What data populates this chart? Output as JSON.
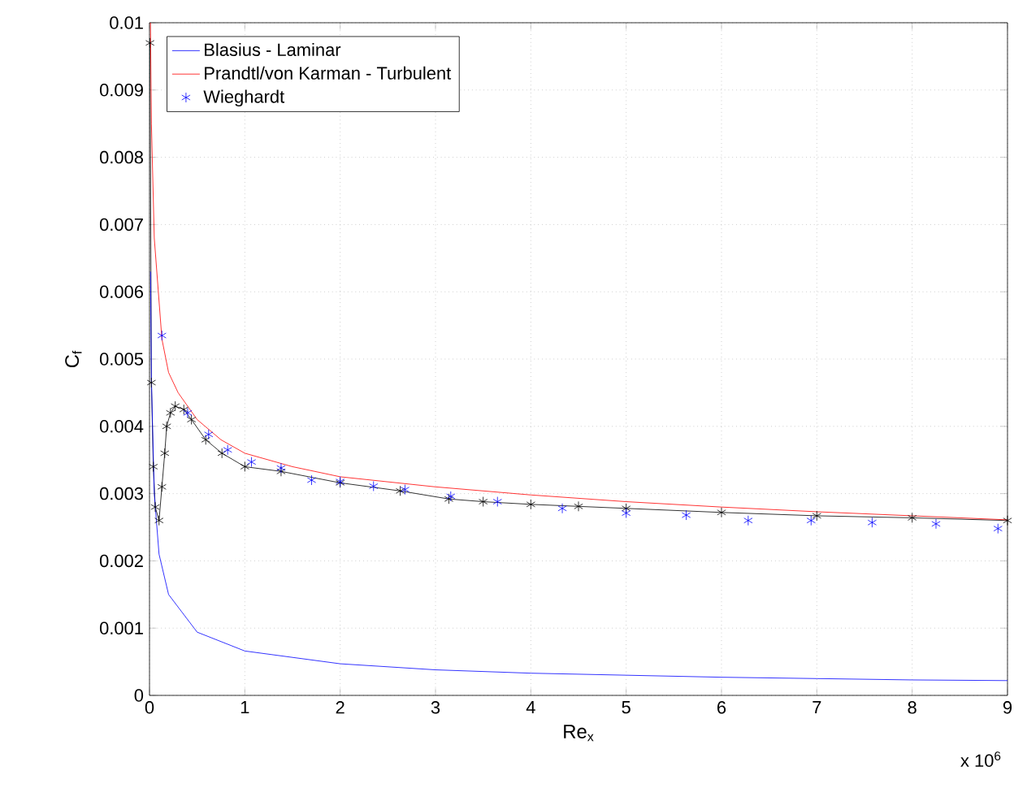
{
  "chart_data": {
    "type": "line",
    "xlabel": "Re$_{x}$",
    "ylabel": "C$_{f}$",
    "annotations": [
      "x 10$^{6}$"
    ],
    "xlim": [
      0,
      9
    ],
    "xticks": [
      0,
      1,
      2,
      3,
      4,
      5,
      6,
      7,
      8,
      9
    ],
    "ylim": [
      0,
      0.01
    ],
    "yticks": [
      0,
      0.001,
      0.002,
      0.003,
      0.004,
      0.005,
      0.006,
      0.007,
      0.008,
      0.009,
      0.01
    ],
    "grid": true,
    "legend": "top left",
    "series": [
      {
        "color": "#000000",
        "marker": "cross",
        "x": [
          0.005,
          0.02,
          0.04,
          0.06,
          0.1,
          0.13,
          0.16,
          0.18,
          0.22,
          0.27,
          0.36,
          0.44,
          0.59,
          0.76,
          1.0,
          1.38,
          2.0,
          2.63,
          3.14,
          3.5,
          4.0,
          4.5,
          5.0,
          6.0,
          7.0,
          8.0,
          9.0
        ],
        "values": [
          0.0097,
          0.00465,
          0.0034,
          0.0028,
          0.0026,
          0.0031,
          0.0036,
          0.004,
          0.0042,
          0.0043,
          0.00425,
          0.0041,
          0.0038,
          0.0036,
          0.0034,
          0.00333,
          0.00316,
          0.00304,
          0.00292,
          0.00288,
          0.00284,
          0.00281,
          0.00278,
          0.00272,
          0.00267,
          0.00264,
          0.0026
        ]
      },
      {
        "name": "Blasius - Laminar",
        "color": "#0000ff",
        "marker": "none",
        "x": [
          0.011,
          0.02,
          0.05,
          0.1,
          0.2,
          0.5,
          1,
          2,
          3,
          4,
          5,
          6,
          7,
          8,
          9
        ],
        "values": [
          0.0063,
          0.0047,
          0.003,
          0.0021,
          0.0015,
          0.00094,
          0.00066,
          0.00047,
          0.00038,
          0.00033,
          0.0003,
          0.00027,
          0.00025,
          0.00023,
          0.00022
        ]
      },
      {
        "name": "Prandtl/von Karman - Turbulent",
        "color": "#ff0000",
        "marker": "none",
        "x": [
          0.01,
          0.02,
          0.05,
          0.13,
          0.2,
          0.3,
          0.5,
          0.75,
          1,
          1.5,
          2,
          3,
          4,
          5,
          6,
          7,
          8,
          9
        ],
        "values": [
          0.01,
          0.0085,
          0.0068,
          0.0053,
          0.0048,
          0.0045,
          0.0041,
          0.0038,
          0.0036,
          0.0034,
          0.00325,
          0.0031,
          0.00298,
          0.00288,
          0.0028,
          0.00273,
          0.00267,
          0.00261
        ]
      },
      {
        "name": "Wieghardt",
        "type": "scatter",
        "color": "#0000ff",
        "marker": "cross",
        "x": [
          0.13,
          0.4,
          0.62,
          0.82,
          1.07,
          1.38,
          1.7,
          2.0,
          2.35,
          2.68,
          3.16,
          3.65,
          4.33,
          5.0,
          5.63,
          6.28,
          6.94,
          7.58,
          8.25,
          8.9
        ],
        "values": [
          0.00535,
          0.0042,
          0.00388,
          0.00365,
          0.00347,
          0.00338,
          0.0032,
          0.00318,
          0.00311,
          0.00306,
          0.00296,
          0.00288,
          0.00278,
          0.00271,
          0.00268,
          0.0026,
          0.0026,
          0.00257,
          0.00255,
          0.00248
        ]
      }
    ]
  }
}
